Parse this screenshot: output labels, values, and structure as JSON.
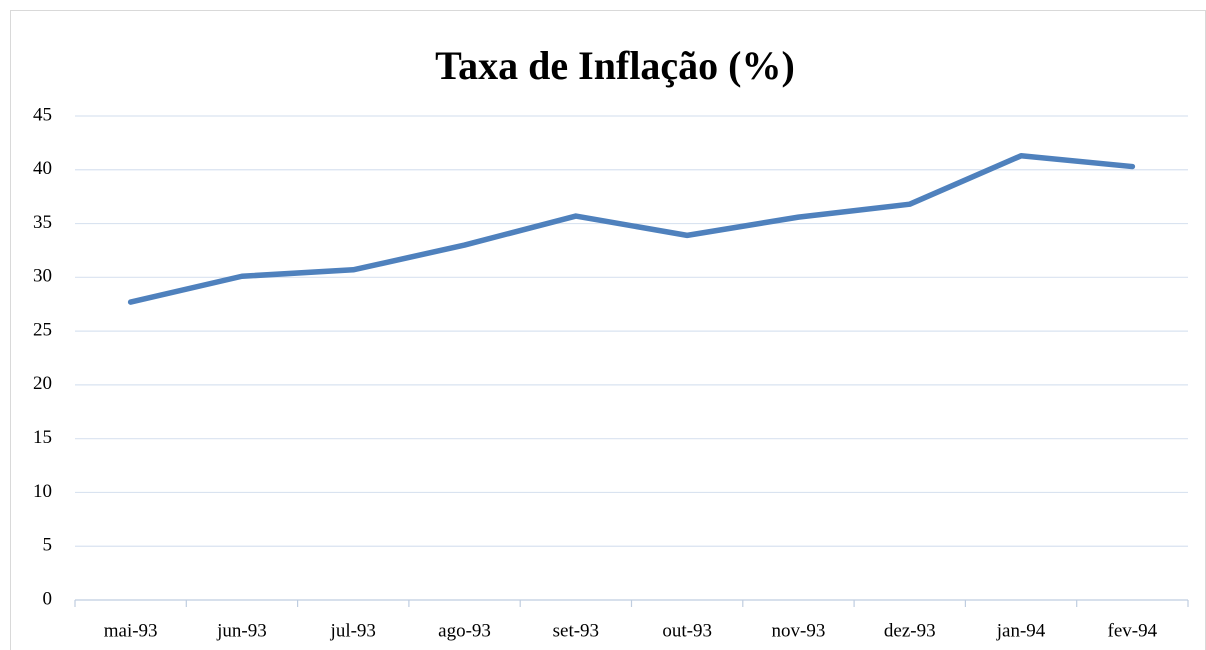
{
  "chart_data": {
    "type": "line",
    "title": "Taxa de Inflação (%)",
    "categories": [
      "mai-93",
      "jun-93",
      "jul-93",
      "ago-93",
      "set-93",
      "out-93",
      "nov-93",
      "dez-93",
      "jan-94",
      "fev-94"
    ],
    "values": [
      27.7,
      30.1,
      30.7,
      33.0,
      35.7,
      33.9,
      35.6,
      36.8,
      41.3,
      40.3
    ],
    "color": "#4f81bd",
    "ylim": [
      0,
      45
    ],
    "yticks": [
      0,
      5,
      10,
      15,
      20,
      25,
      30,
      35,
      40,
      45
    ],
    "grid": true
  }
}
